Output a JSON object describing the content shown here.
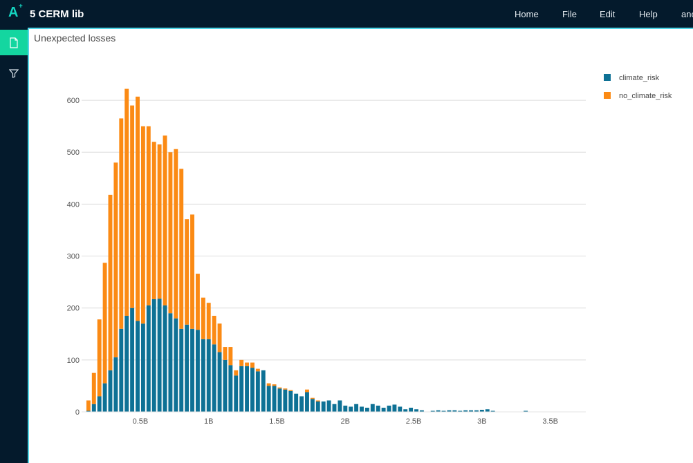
{
  "app": {
    "logo_letter": "A",
    "logo_plus": "+",
    "title": "5 CERM lib"
  },
  "menu": {
    "home": "Home",
    "file": "File",
    "edit": "Edit",
    "help": "Help",
    "user": "anc"
  },
  "colors": {
    "topbar": "#041a2c",
    "accent": "#14d6a0",
    "climate_risk": "#0e7195",
    "no_climate_risk": "#fb8a14"
  },
  "sidebar": {
    "items": [
      {
        "icon": "document-icon",
        "active": true
      },
      {
        "icon": "filter-icon",
        "active": false
      }
    ]
  },
  "panel": {
    "title": "Unexpected losses"
  },
  "chart_data": {
    "type": "bar",
    "barmode": "stacked",
    "x_start": 0.1,
    "bin_width": 0.04,
    "xlim": [
      0.07,
      3.76
    ],
    "ylim": [
      0,
      660
    ],
    "x_ticks": [
      0.5,
      1,
      1.5,
      2,
      2.5,
      3,
      3.5
    ],
    "x_tick_labels": [
      "0.5B",
      "1B",
      "1.5B",
      "2B",
      "2.5B",
      "3B",
      "3.5B"
    ],
    "y_ticks": [
      0,
      100,
      200,
      300,
      400,
      500,
      600
    ],
    "y_tick_labels": [
      "0",
      "100",
      "200",
      "300",
      "400",
      "500",
      "600"
    ],
    "grid": true,
    "legend_position": "top-right",
    "series": [
      {
        "name": "climate_risk",
        "values": [
          2,
          15,
          30,
          55,
          80,
          105,
          160,
          185,
          200,
          175,
          170,
          205,
          217,
          218,
          205,
          190,
          180,
          160,
          168,
          160,
          158,
          140,
          140,
          130,
          115,
          100,
          90,
          70,
          88,
          88,
          85,
          78,
          80,
          50,
          50,
          45,
          43,
          40,
          35,
          30,
          38,
          25,
          20,
          20,
          22,
          15,
          22,
          12,
          10,
          15,
          10,
          8,
          15,
          12,
          8,
          12,
          14,
          10,
          5,
          8,
          5,
          3,
          0,
          2,
          3,
          2,
          3,
          3,
          2,
          3,
          3,
          3,
          4,
          5,
          2,
          0,
          0,
          0,
          0,
          0,
          2,
          0,
          0,
          0,
          0,
          0,
          0,
          0,
          0,
          0,
          0,
          0,
          0
        ]
      },
      {
        "name": "no_climate_risk",
        "values": [
          20,
          60,
          148,
          232,
          338,
          375,
          405,
          437,
          390,
          432,
          380,
          345,
          303,
          297,
          327,
          310,
          326,
          308,
          203,
          220,
          108,
          80,
          70,
          55,
          55,
          25,
          35,
          10,
          12,
          7,
          10,
          5,
          0,
          5,
          3,
          2,
          2,
          2,
          0,
          0,
          5,
          2,
          2,
          0,
          0,
          0,
          0,
          0,
          0,
          0,
          0,
          0,
          0,
          0,
          0,
          0,
          0,
          0,
          0,
          0,
          0,
          0,
          0,
          0,
          0,
          0,
          0,
          0,
          0,
          0,
          0,
          0,
          0,
          0,
          0,
          0,
          0,
          0,
          0,
          0,
          0,
          0,
          0,
          0,
          0,
          0,
          0,
          0,
          0,
          0,
          0,
          0,
          0
        ]
      }
    ]
  }
}
